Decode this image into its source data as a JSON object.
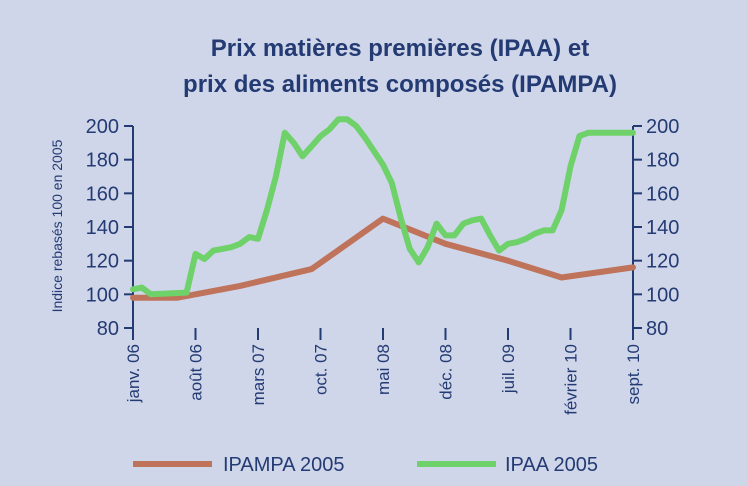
{
  "colors": {
    "background": "#cfd6e9",
    "axis": "#233a73",
    "text": "#233a73",
    "ipampa": "#bf735a",
    "ipaa": "#6fd16a"
  },
  "chart_data": {
    "type": "line",
    "title": [
      "Prix matières premières (IPAA) et",
      "prix des aliments composés (IPAMPA)"
    ],
    "ylabel": "Indice rebasés 100 en 2005",
    "ylim": [
      80,
      200
    ],
    "yticks": [
      80,
      100,
      120,
      140,
      160,
      180,
      200
    ],
    "y2ticks": [
      80,
      100,
      120,
      140,
      160,
      180,
      200
    ],
    "xlim": [
      0,
      56
    ],
    "xticks": [
      {
        "label": "janv. 06",
        "x": 0
      },
      {
        "label": "août 06",
        "x": 7
      },
      {
        "label": "mars 07",
        "x": 14
      },
      {
        "label": "oct. 07",
        "x": 21
      },
      {
        "label": "mai 08",
        "x": 28
      },
      {
        "label": "déc. 08",
        "x": 35
      },
      {
        "label": "juil. 09",
        "x": 42
      },
      {
        "label": "février 10",
        "x": 49
      },
      {
        "label": "sept. 10",
        "x": 56
      }
    ],
    "legend_position": "bottom",
    "series": [
      {
        "name": "IPAMPA 2005",
        "color": "#bf735a",
        "x": [
          0,
          5,
          12,
          20,
          28,
          35,
          42,
          48,
          56
        ],
        "y": [
          98,
          98,
          105,
          115,
          145,
          130,
          120,
          110,
          116
        ]
      },
      {
        "name": "IPAA 2005",
        "color": "#6fd16a",
        "x": [
          0,
          1,
          2,
          6,
          7,
          8,
          9,
          10,
          11,
          12,
          13,
          14,
          15,
          16,
          17,
          18,
          19,
          20,
          21,
          22,
          23,
          24,
          25,
          26,
          27,
          28,
          29,
          30,
          31,
          32,
          33,
          34,
          35,
          36,
          37,
          38,
          39,
          40,
          41,
          42,
          43,
          44,
          45,
          46,
          47,
          48,
          49,
          50,
          51,
          52,
          53,
          54,
          55,
          56
        ],
        "y": [
          103,
          104,
          100,
          101,
          124,
          121,
          126,
          127,
          128,
          130,
          134,
          133,
          150,
          170,
          196,
          190,
          182,
          188,
          194,
          198,
          204,
          204,
          200,
          193,
          185,
          177,
          166,
          145,
          127,
          119,
          128,
          142,
          135,
          135,
          142,
          144,
          145,
          135,
          126,
          130,
          131,
          133,
          136,
          138,
          138,
          150,
          176,
          194,
          196,
          196,
          196,
          196,
          196,
          196
        ]
      }
    ]
  }
}
